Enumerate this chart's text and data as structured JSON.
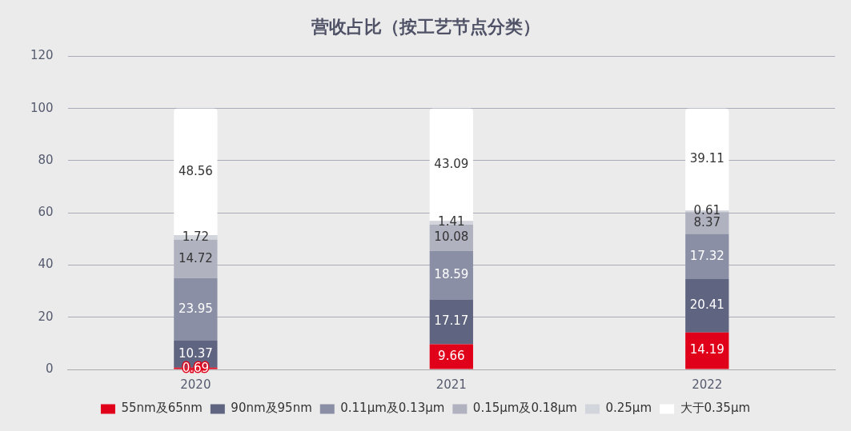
{
  "chart_data": {
    "type": "bar",
    "title": "营收占比（按工艺节点分类）",
    "categories": [
      "2020",
      "2021",
      "2022"
    ],
    "stacked": true,
    "data_labels": true,
    "legend": "bottom",
    "grid": "y",
    "ylim": [
      0,
      120
    ],
    "yticks": [
      0,
      20,
      40,
      60,
      80,
      100,
      120
    ],
    "series": [
      {
        "name": "55nm及65nm",
        "color": "#e0001a",
        "values": [
          0.69,
          9.66,
          14.19
        ]
      },
      {
        "name": "90nm及95nm",
        "color": "#5f6480",
        "values": [
          10.37,
          17.17,
          20.41
        ]
      },
      {
        "name": "0.11µm及0.13µm",
        "color": "#8a8fa6",
        "values": [
          23.95,
          18.59,
          17.32
        ]
      },
      {
        "name": "0.15µm及0.18µm",
        "color": "#b0b2c0",
        "values": [
          14.72,
          10.08,
          8.37
        ]
      },
      {
        "name": "0.25µm",
        "color": "#d3d5dd",
        "values": [
          1.72,
          1.41,
          0.61
        ]
      },
      {
        "name": "大于0.35µm",
        "color": "#ffffff",
        "values": [
          48.56,
          43.09,
          39.11
        ]
      }
    ]
  }
}
